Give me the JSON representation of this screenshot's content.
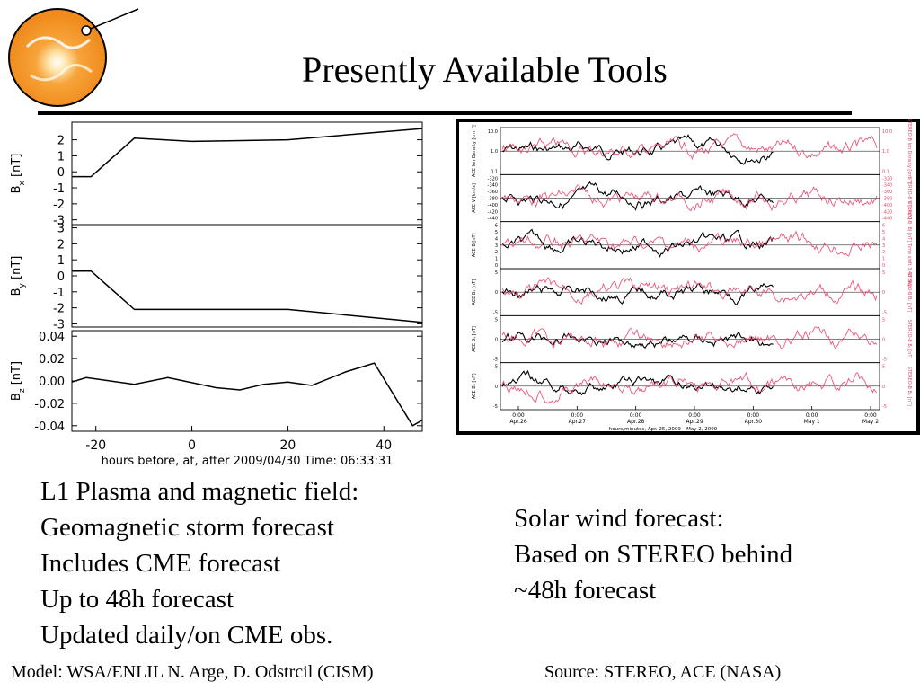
{
  "slide": {
    "title": "Presently Available Tools",
    "left_bullets": [
      "L1 Plasma and magnetic field:",
      "Geomagnetic storm forecast",
      "Includes CME forecast",
      "Up to 48h forecast",
      "Updated daily/on CME obs."
    ],
    "right_bullets": [
      "Solar wind forecast:",
      "Based on STEREO behind",
      "~48h forecast"
    ],
    "credit_left": "Model: WSA/ENLIL N. Arge, D. Odstrcil (CISM)",
    "credit_right": "Source: STEREO, ACE (NASA)"
  },
  "chart_data": [
    {
      "type": "line",
      "xlabel": "hours before, at, after 2009/04/30 Time: 06:33:31",
      "xticks": [
        "-20",
        "0",
        "20",
        "40"
      ],
      "xlim": [
        -25,
        48
      ],
      "panels": [
        {
          "ylabel": "B<sub>x</sub> [nT]",
          "ylim": [
            -3.3,
            3.1
          ],
          "yticks": [
            "-3",
            "-2",
            "-1",
            "0",
            "1",
            "2"
          ],
          "x": [
            -25,
            -21,
            -12,
            0,
            20,
            48
          ],
          "y": [
            -0.3,
            -0.3,
            2.1,
            1.9,
            2.0,
            2.7
          ]
        },
        {
          "ylabel": "B<sub>y</sub> [nT]",
          "ylim": [
            -3.2,
            3.2
          ],
          "yticks": [
            "-3",
            "-2",
            "-1",
            "0",
            "1",
            "2",
            "3"
          ],
          "x": [
            -25,
            -21,
            -12,
            0,
            20,
            48
          ],
          "y": [
            0.3,
            0.3,
            -2.1,
            -2.1,
            -2.1,
            -2.9
          ]
        },
        {
          "ylabel": "B<sub>z</sub> [nT]",
          "ylim": [
            -0.045,
            0.045
          ],
          "yticks": [
            "-0.04",
            "-0.02",
            "0.00",
            "0.02",
            "0.04"
          ],
          "x": [
            -25,
            -22,
            -12,
            -5,
            5,
            10,
            15,
            20,
            25,
            32,
            38,
            46,
            48
          ],
          "y": [
            -0.001,
            0.003,
            -0.003,
            0.003,
            -0.006,
            -0.008,
            -0.003,
            -0.001,
            -0.004,
            0.008,
            0.016,
            -0.04,
            -0.035
          ]
        }
      ]
    },
    {
      "type": "scatter",
      "x_tick_labels": [
        "0:00\nApr.26",
        "0:00\nApr.27",
        "0:00\nApr.28",
        "0:00\nApr.29",
        "0:00\nApr.30",
        "0:00\nMay 1",
        "0:00\nMay 2"
      ],
      "xlabel": "hours/minutes, Apr. 25, 2009 – May 2, 2009",
      "series": [
        {
          "name": "ACE",
          "color": "#000000"
        },
        {
          "name": "STEREO-B",
          "color": "#e8456a"
        }
      ],
      "panels": [
        {
          "left_label": "ACE Ion Density [cm⁻³]",
          "right_label": "STEREO-B Ion Density [cm⁻³]",
          "yticks": [
            "10.0",
            "1.0",
            "0.1"
          ]
        },
        {
          "left_label": "ACE V [km/s]",
          "right_label": "STEREO-B V [km/s]",
          "yticks": [
            "-320",
            "-340",
            "-360",
            "-380",
            "-400",
            "-420",
            "-440"
          ]
        },
        {
          "left_label": "ACE B [nT]",
          "right_label": "STEREO-B |B| [nT] Time shift 3.48 days",
          "yticks": [
            "6",
            "5",
            "4",
            "3",
            "2",
            "1",
            "0"
          ]
        },
        {
          "left_label": "ACE Bₓ [nT]",
          "right_label": "STEREO-B Bₓ [nT]",
          "yticks": [
            "5",
            "0",
            "-5"
          ]
        },
        {
          "left_label": "ACE Bᵧ [nT]",
          "right_label": "STEREO-B Bᵧ [nT]",
          "yticks": [
            "5",
            "0",
            "-5"
          ]
        },
        {
          "left_label": "ACE Bₓ [nT]",
          "right_label": "STEREO-B Bₓ [nT]",
          "yticks": [
            "5",
            "0",
            "-5"
          ]
        }
      ]
    }
  ]
}
